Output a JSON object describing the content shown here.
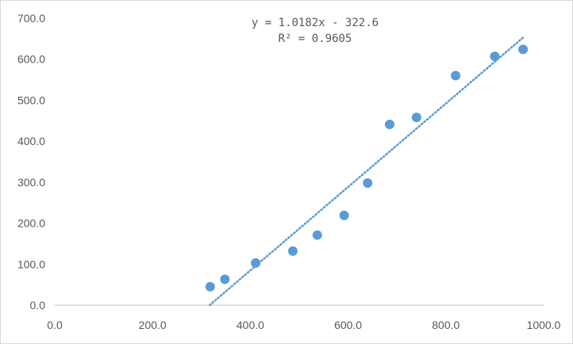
{
  "chart_data": {
    "type": "scatter",
    "xlim": [
      0,
      1000
    ],
    "ylim": [
      0,
      700
    ],
    "x_ticks": [
      "0.0",
      "200.0",
      "400.0",
      "600.0",
      "800.0",
      "1000.0"
    ],
    "y_ticks": [
      "0.0",
      "100.0",
      "200.0",
      "300.0",
      "400.0",
      "500.0",
      "600.0",
      "700.0"
    ],
    "grid": false,
    "legend": "none",
    "series": [
      {
        "x": [
          318,
          348,
          411,
          487,
          537,
          592,
          640,
          685,
          740,
          820,
          900,
          958
        ],
        "y": [
          45,
          63,
          103,
          132,
          171,
          219,
          298,
          441,
          458,
          560,
          607,
          624
        ]
      }
    ],
    "trendline": {
      "type": "linear",
      "slope": 1.0182,
      "intercept": -322.6,
      "x_range": [
        317,
        958
      ],
      "equation_label": "y = 1.0182x - 322.6",
      "r2_label": "R² = 0.9605"
    },
    "colors": {
      "marker": "#5b9bd5",
      "trendline": "#5b9bd5",
      "axis": "#bfbfbf",
      "text": "#595959"
    }
  }
}
